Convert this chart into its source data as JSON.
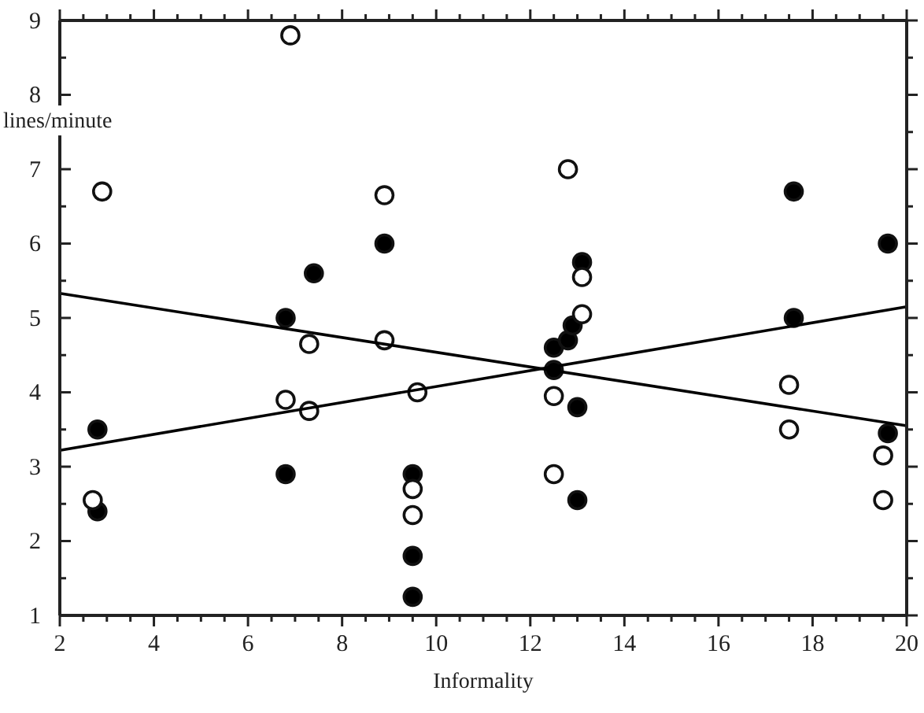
{
  "chart_data": {
    "type": "scatter",
    "xlabel": "Informality",
    "ylabel": "lines/minute",
    "xlim": [
      2,
      20
    ],
    "ylim": [
      1,
      9
    ],
    "xticks": [
      2,
      {
        "value": 2.5,
        "label": null
      },
      {
        "value": 3,
        "label": null
      },
      {
        "value": 3.5,
        "label": null
      },
      4,
      {
        "value": 4.5,
        "label": null
      },
      {
        "value": 5,
        "label": null
      },
      {
        "value": 5.5,
        "label": null
      },
      6,
      {
        "value": 6.5,
        "label": null
      },
      {
        "value": 7,
        "label": null
      },
      {
        "value": 7.5,
        "label": null
      },
      8,
      {
        "value": 8.5,
        "label": null
      },
      {
        "value": 9,
        "label": null
      },
      {
        "value": 9.5,
        "label": null
      },
      10,
      {
        "value": 10.5,
        "label": null
      },
      {
        "value": 11,
        "label": null
      },
      {
        "value": 11.5,
        "label": null
      },
      12,
      {
        "value": 12.5,
        "label": null
      },
      {
        "value": 13,
        "label": null
      },
      {
        "value": 13.5,
        "label": null
      },
      14,
      {
        "value": 14.5,
        "label": null
      },
      {
        "value": 15,
        "label": null
      },
      {
        "value": 15.5,
        "label": null
      },
      16,
      {
        "value": 16.5,
        "label": null
      },
      {
        "value": 17,
        "label": null
      },
      {
        "value": 17.5,
        "label": null
      },
      18,
      {
        "value": 18.5,
        "label": null
      },
      {
        "value": 19,
        "label": null
      },
      {
        "value": 19.5,
        "label": null
      },
      20
    ],
    "yticks": [
      1,
      {
        "value": 1.5,
        "label": null
      },
      2,
      {
        "value": 2.5,
        "label": null
      },
      3,
      {
        "value": 3.5,
        "label": null
      },
      4,
      {
        "value": 4.5,
        "label": null
      },
      5,
      {
        "value": 5.5,
        "label": null
      },
      6,
      {
        "value": 6.5,
        "label": null
      },
      7,
      {
        "value": 7.5,
        "label": null
      },
      8,
      {
        "value": 8.5,
        "label": null
      },
      9
    ],
    "marker": "circle",
    "grid": false,
    "series": [
      {
        "color": "#000000",
        "x": [
          2.8,
          2.8,
          6.8,
          6.8,
          7.4,
          8.9,
          9.5,
          9.5,
          9.5,
          12.5,
          12.5,
          12.8,
          12.9,
          13.1,
          13.0,
          13.0,
          17.6,
          17.6,
          19.6,
          19.6
        ],
        "values": [
          3.5,
          2.4,
          2.9,
          5.0,
          5.6,
          6.0,
          2.9,
          1.8,
          1.25,
          4.3,
          4.6,
          4.7,
          4.9,
          5.75,
          3.8,
          2.55,
          6.7,
          5.0,
          6.0,
          3.45
        ]
      },
      {
        "color": "#ffffff",
        "x": [
          2.9,
          2.7,
          6.9,
          6.8,
          7.3,
          7.3,
          8.9,
          8.9,
          9.6,
          9.5,
          9.5,
          12.8,
          13.1,
          13.1,
          12.5,
          12.5,
          17.5,
          17.5,
          19.5,
          19.5
        ],
        "values": [
          6.7,
          2.55,
          8.8,
          3.9,
          3.75,
          4.65,
          6.65,
          4.7,
          4.0,
          2.7,
          2.35,
          7.0,
          5.55,
          5.05,
          3.95,
          2.9,
          4.1,
          3.5,
          3.15,
          2.55
        ]
      },
      {
        "type": "line",
        "color": "#000000",
        "line_style": "solid",
        "marker": "none",
        "x": [
          2,
          20
        ],
        "values": [
          3.22,
          5.15
        ]
      },
      {
        "type": "line",
        "color": "#000000",
        "line_style": "solid",
        "marker": "none",
        "x": [
          2,
          20
        ],
        "values": [
          5.33,
          3.55
        ]
      }
    ]
  }
}
